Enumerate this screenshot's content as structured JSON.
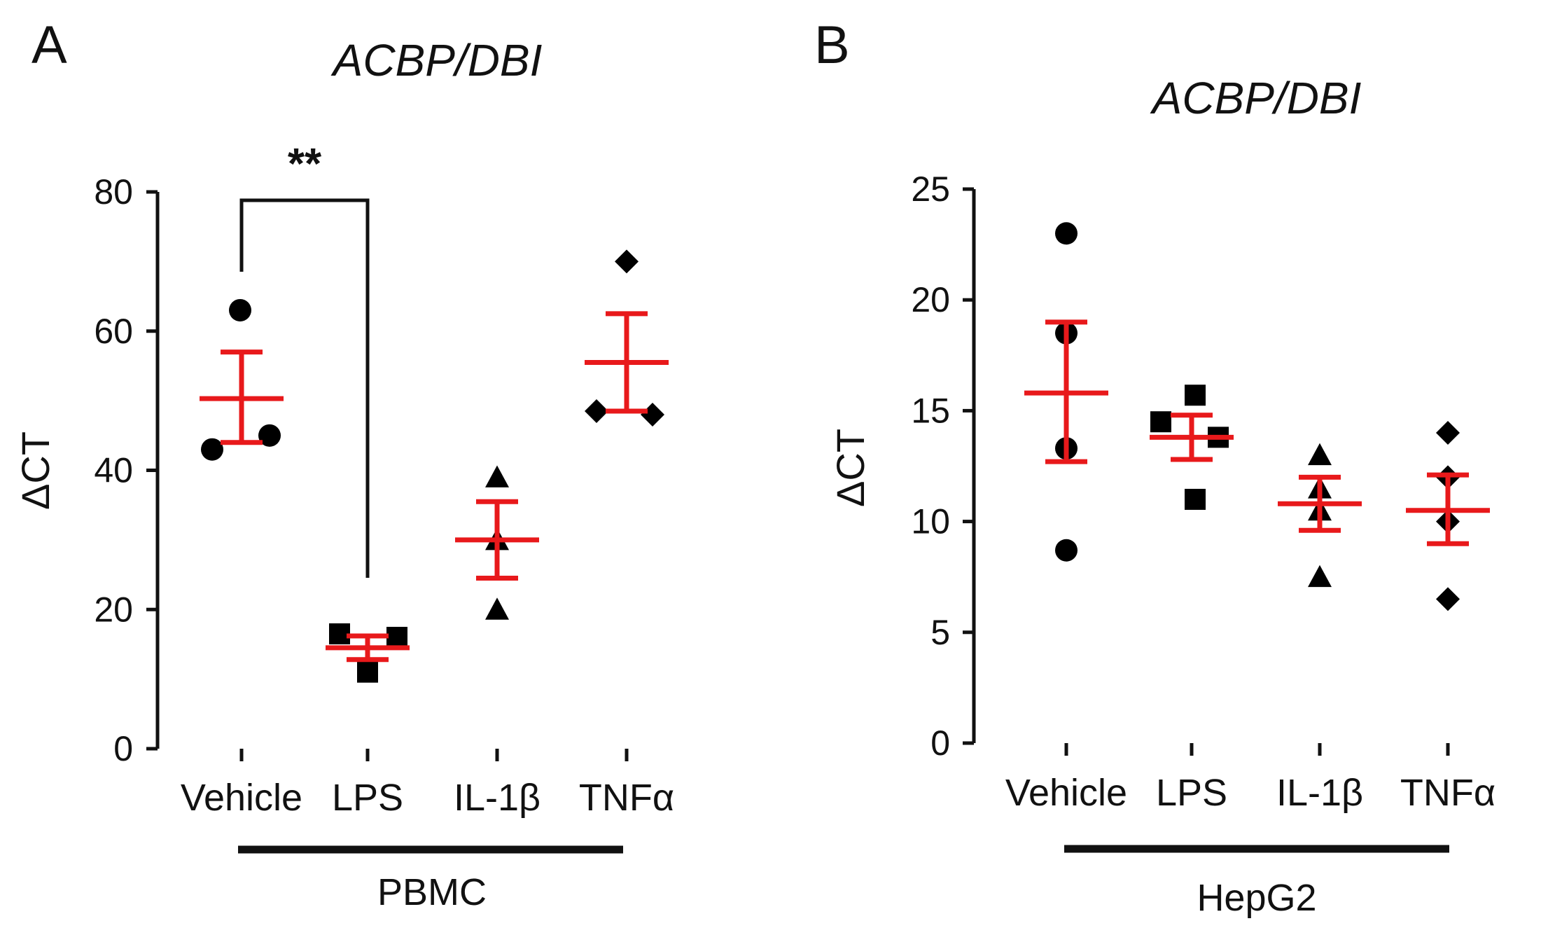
{
  "figure": {
    "colors": {
      "axis": "#111111",
      "marker": "#000000",
      "mean_sem": "#e8191b"
    }
  },
  "chart_data": [
    {
      "panel": "A",
      "type": "scatter",
      "title": "ACBP/DBI",
      "xlabel": "PBMC",
      "ylabel": "ΔCT",
      "ylim": [
        0,
        80
      ],
      "yticks": [
        "0",
        "20",
        "40",
        "60",
        "80"
      ],
      "grid": false,
      "categories": [
        "Vehicle",
        "LPS",
        "IL-1β",
        "TNFα"
      ],
      "markers": [
        "circle",
        "square",
        "triangle",
        "diamond"
      ],
      "series": [
        {
          "category": "Vehicle",
          "values": [
            63,
            45,
            43
          ],
          "mean": 50.3,
          "sem_low": 44,
          "sem_high": 57
        },
        {
          "category": "LPS",
          "values": [
            16.5,
            16,
            11
          ],
          "mean": 14.5,
          "sem_low": 12.8,
          "sem_high": 16.2
        },
        {
          "category": "IL-1β",
          "values": [
            39,
            30,
            20
          ],
          "mean": 30,
          "sem_low": 24.5,
          "sem_high": 35.5
        },
        {
          "category": "TNFα",
          "values": [
            70,
            48,
            48.5
          ],
          "mean": 55.5,
          "sem_low": 48.5,
          "sem_high": 62.5
        }
      ],
      "significance": [
        {
          "from": "Vehicle",
          "to": "LPS",
          "label": "**"
        }
      ]
    },
    {
      "panel": "B",
      "type": "scatter",
      "title": "ACBP/DBI",
      "xlabel": "HepG2",
      "ylabel": "ΔCT",
      "ylim": [
        0,
        25
      ],
      "yticks": [
        "0",
        "5",
        "10",
        "15",
        "20",
        "25"
      ],
      "grid": false,
      "categories": [
        "Vehicle",
        "LPS",
        "IL-1β",
        "TNFα"
      ],
      "markers": [
        "circle",
        "square",
        "triangle",
        "diamond"
      ],
      "series": [
        {
          "category": "Vehicle",
          "values": [
            23,
            18.5,
            13.3,
            8.7
          ],
          "mean": 15.8,
          "sem_low": 12.7,
          "sem_high": 19
        },
        {
          "category": "LPS",
          "values": [
            15.7,
            14.5,
            13.8,
            11
          ],
          "mean": 13.8,
          "sem_low": 12.8,
          "sem_high": 14.8
        },
        {
          "category": "IL-1β",
          "values": [
            13,
            11.5,
            10.5,
            7.5
          ],
          "mean": 10.8,
          "sem_low": 9.6,
          "sem_high": 12
        },
        {
          "category": "TNFα",
          "values": [
            14,
            12,
            10,
            6.5
          ],
          "mean": 10.5,
          "sem_low": 9,
          "sem_high": 12.1
        }
      ],
      "significance": []
    }
  ]
}
